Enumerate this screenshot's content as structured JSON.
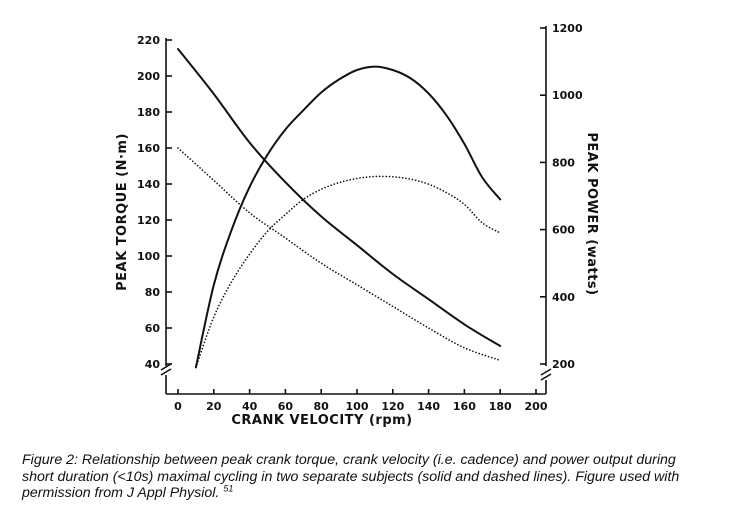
{
  "chart_data": {
    "type": "line",
    "xlabel": "CRANK VELOCITY (rpm)",
    "ylabel_left": "PEAK TORQUE (N·m)",
    "ylabel_right": "PEAK POWER (watts)",
    "xlim": [
      0,
      200
    ],
    "ylim_left": [
      40,
      220
    ],
    "ylim_right": [
      200,
      1200
    ],
    "x_ticks": [
      "0",
      "20",
      "40",
      "60",
      "80",
      "100",
      "120",
      "140",
      "160",
      "180",
      "200"
    ],
    "y_left_ticks": [
      "40",
      "60",
      "80",
      "100",
      "120",
      "140",
      "160",
      "180",
      "200",
      "220"
    ],
    "y_right_ticks": [
      "200",
      "400",
      "600",
      "800",
      "1000",
      "1200"
    ],
    "grid": false,
    "series": [
      {
        "axis": "left",
        "style": "solid",
        "x": [
          0,
          20,
          40,
          60,
          80,
          100,
          120,
          140,
          160,
          180
        ],
        "y": [
          215,
          190,
          163,
          141,
          122,
          106,
          90,
          76,
          62,
          50
        ]
      },
      {
        "axis": "left",
        "style": "dotted",
        "x": [
          0,
          20,
          40,
          60,
          80,
          100,
          120,
          140,
          160,
          180
        ],
        "y": [
          160,
          142,
          124,
          110,
          96,
          84,
          72,
          60,
          49,
          42
        ]
      },
      {
        "axis": "right",
        "style": "solid",
        "x": [
          10,
          20,
          30,
          40,
          50,
          60,
          70,
          80,
          90,
          100,
          110,
          120,
          130,
          140,
          150,
          160,
          170,
          180
        ],
        "y": [
          190,
          435,
          600,
          727,
          823,
          898,
          955,
          1008,
          1047,
          1075,
          1085,
          1075,
          1050,
          1005,
          940,
          855,
          755,
          690
        ]
      },
      {
        "axis": "right",
        "style": "dotted",
        "x": [
          10,
          20,
          30,
          40,
          50,
          60,
          70,
          80,
          90,
          100,
          110,
          120,
          130,
          140,
          150,
          160,
          170,
          180
        ],
        "y": [
          190,
          340,
          445,
          527,
          595,
          645,
          690,
          720,
          740,
          752,
          758,
          757,
          750,
          735,
          710,
          675,
          620,
          590
        ]
      }
    ]
  },
  "caption": {
    "text": "Figure 2: Relationship between peak crank torque, crank velocity (i.e. cadence) and power output during short duration (<10s) maximal cycling in two separate subjects (solid and dashed lines). Figure used with permission from J Appl Physiol.",
    "reference": "51"
  }
}
